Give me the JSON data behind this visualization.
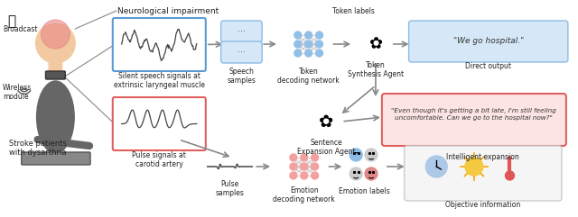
{
  "bg_color": "#ffffff",
  "title_text": "Neurological impairment",
  "speech_box_label": "Silent speech signals at\nextrinsic laryngeal muscle",
  "pulse_box_label": "Pulse signals at\ncarotid artery",
  "broadcast_label": "Broadcast",
  "wireless_label": "Wireless\nmodule",
  "stroke_label": "Stroke patients\nwith dysarthria",
  "speech_samples_label": "Speech\nsamples",
  "token_decode_label": "Token\ndecoding network",
  "token_labels_label": "Token labels",
  "token_synth_label": "Token\nSynthesis Agent",
  "direct_output_label": "Direct output",
  "direct_output_text": "\"We go hospital.\"",
  "sentence_agent_label": "Sentence\nExpansion Agent",
  "expanded_text": "\"Even though it's getting a bit late, I'm still feeling\nuncomfortable. Can we go to the hospital now?\"",
  "intelligent_expansion_label": "Intelligent expansion",
  "pulse_samples_label": "Pulse\nsamples",
  "emotion_decode_label": "Emotion\ndecoding network",
  "emotion_labels_label": "Emotion labels",
  "objective_info_label": "Objective information",
  "speech_box_color": "#5b9bd5",
  "pulse_box_color": "#e06060",
  "direct_output_box_color": "#d0e4f7",
  "expanded_text_box_color": "#fce4e4",
  "node_color_blue": "#92bfe8",
  "node_color_pink": "#f4a0a0",
  "arrow_color": "#888888",
  "text_color": "#222222"
}
